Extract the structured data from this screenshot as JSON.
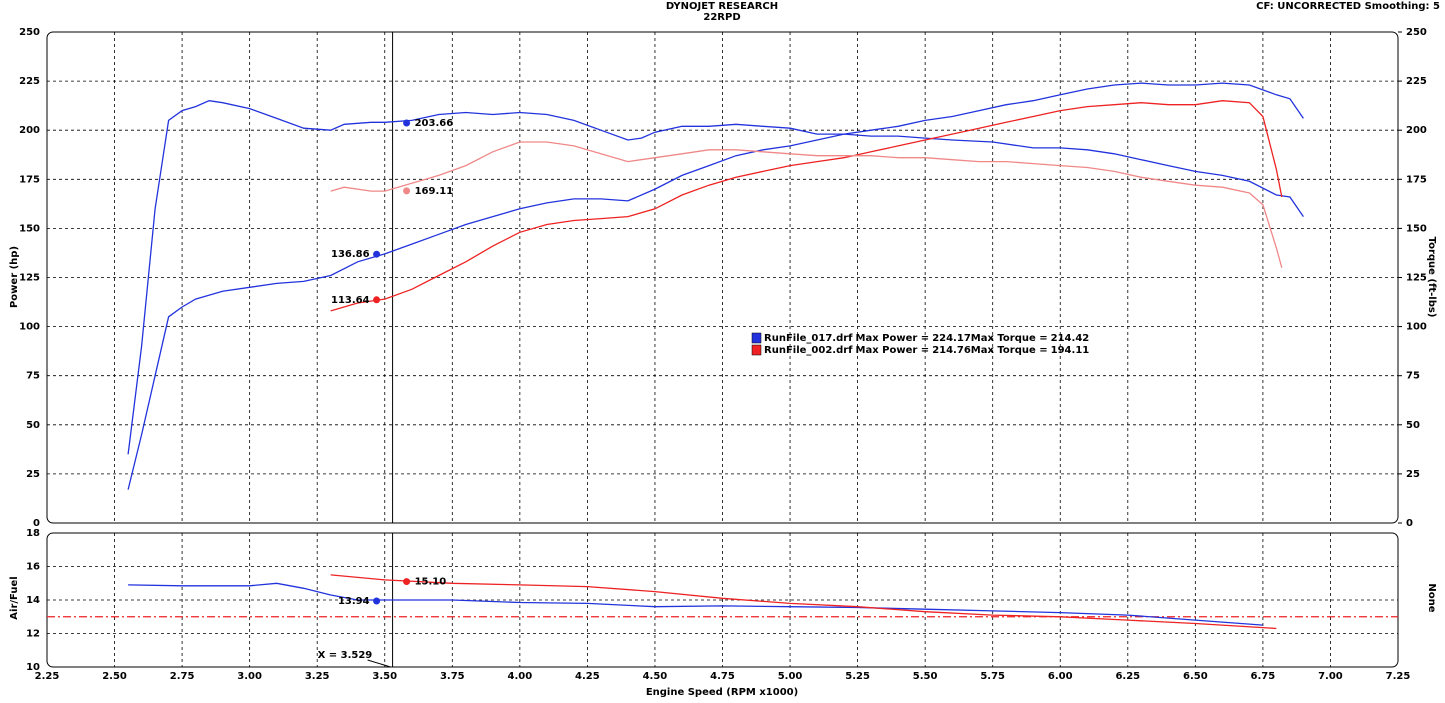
{
  "chart_data": [
    {
      "type": "line",
      "title": "DYNOJET RESEARCH",
      "subtitle": "22RPD",
      "note": "CF: UNCORRECTED  Smoothing: 5",
      "ylabel": "Power (hp)",
      "y2label": "Torque (ft-lbs)",
      "xlim": [
        2.25,
        7.25
      ],
      "ylim": [
        0,
        250
      ],
      "yticks": [
        0,
        25,
        50,
        75,
        100,
        125,
        150,
        175,
        200,
        225,
        250
      ],
      "y2lim": [
        0,
        250
      ],
      "y2ticks": [
        0,
        25,
        50,
        75,
        100,
        125,
        150,
        175,
        200,
        225,
        250
      ],
      "grid": true,
      "legend_text": {
        "power": "Max Power =",
        "torque": "Max Torque ="
      },
      "legend": [
        {
          "name": "RunFile_017.drf",
          "color": "#2233dd",
          "max_power": 224.17,
          "max_torque": 214.42
        },
        {
          "name": "RunFile_002.drf",
          "color": "#ee2222",
          "max_power": 214.76,
          "max_torque": 194.11
        }
      ],
      "series": [
        {
          "color": "#2233dd",
          "axis": "y",
          "cursor_value": 136.86,
          "x": [
            2.55,
            2.6,
            2.65,
            2.7,
            2.75,
            2.8,
            2.9,
            3.0,
            3.1,
            3.2,
            3.3,
            3.4,
            3.5,
            3.6,
            3.7,
            3.8,
            3.9,
            4.0,
            4.1,
            4.2,
            4.3,
            4.4,
            4.5,
            4.6,
            4.7,
            4.8,
            4.9,
            5.0,
            5.1,
            5.2,
            5.3,
            5.4,
            5.5,
            5.6,
            5.7,
            5.8,
            5.9,
            6.0,
            6.1,
            6.2,
            6.3,
            6.4,
            6.5,
            6.6,
            6.7,
            6.8,
            6.85,
            6.9
          ],
          "values": [
            17,
            45,
            75,
            105,
            110,
            114,
            118,
            120,
            122,
            123,
            126,
            133,
            137,
            142,
            147,
            152,
            156,
            160,
            163,
            165,
            165,
            164,
            170,
            177,
            182,
            187,
            190,
            192,
            195,
            198,
            200,
            202,
            205,
            207,
            210,
            213,
            215,
            218,
            221,
            223,
            224,
            223,
            223,
            224,
            223,
            218,
            216,
            206
          ]
        },
        {
          "color": "#2233dd",
          "axis": "y2",
          "cursor_value": 203.66,
          "x": [
            2.55,
            2.6,
            2.65,
            2.7,
            2.75,
            2.8,
            2.85,
            2.9,
            3.0,
            3.1,
            3.2,
            3.3,
            3.35,
            3.45,
            3.5,
            3.6,
            3.7,
            3.8,
            3.9,
            4.0,
            4.1,
            4.2,
            4.3,
            4.4,
            4.45,
            4.5,
            4.6,
            4.7,
            4.8,
            4.9,
            5.0,
            5.1,
            5.2,
            5.3,
            5.4,
            5.5,
            5.6,
            5.75,
            5.9,
            6.0,
            6.1,
            6.2,
            6.3,
            6.4,
            6.5,
            6.6,
            6.7,
            6.8,
            6.85,
            6.9
          ],
          "values": [
            35,
            90,
            160,
            205,
            210,
            212,
            215,
            214,
            211,
            206,
            201,
            200,
            203,
            204,
            204,
            205,
            208,
            209,
            208,
            209,
            208,
            205,
            200,
            195,
            196,
            199,
            202,
            202,
            203,
            202,
            201,
            198,
            198,
            197,
            197,
            196,
            195,
            194,
            191,
            191,
            190,
            188,
            185,
            182,
            179,
            177,
            174,
            167,
            166,
            156
          ]
        },
        {
          "color": "#ee2222",
          "axis": "y",
          "cursor_value": 113.64,
          "x": [
            3.3,
            3.4,
            3.5,
            3.6,
            3.7,
            3.8,
            3.9,
            4.0,
            4.1,
            4.2,
            4.3,
            4.4,
            4.5,
            4.6,
            4.7,
            4.8,
            4.9,
            5.0,
            5.1,
            5.2,
            5.3,
            5.4,
            5.5,
            5.6,
            5.7,
            5.8,
            5.9,
            6.0,
            6.1,
            6.2,
            6.3,
            6.4,
            6.5,
            6.6,
            6.7,
            6.75,
            6.8,
            6.82
          ],
          "values": [
            108,
            112,
            114,
            119,
            126,
            133,
            141,
            148,
            152,
            154,
            155,
            156,
            160,
            167,
            172,
            176,
            179,
            182,
            184,
            186,
            189,
            192,
            195,
            198,
            201,
            204,
            207,
            210,
            212,
            213,
            214,
            213,
            213,
            215,
            214,
            207,
            180,
            166
          ]
        },
        {
          "color": "#f08888",
          "axis": "y2",
          "cursor_value": 169.11,
          "x": [
            3.3,
            3.35,
            3.45,
            3.5,
            3.6,
            3.7,
            3.8,
            3.9,
            4.0,
            4.1,
            4.2,
            4.3,
            4.4,
            4.5,
            4.6,
            4.7,
            4.8,
            4.9,
            5.0,
            5.1,
            5.2,
            5.3,
            5.4,
            5.5,
            5.6,
            5.7,
            5.8,
            5.9,
            6.0,
            6.1,
            6.2,
            6.3,
            6.4,
            6.5,
            6.6,
            6.7,
            6.75,
            6.8,
            6.82
          ],
          "values": [
            169,
            171,
            169,
            169,
            173,
            177,
            182,
            189,
            194,
            194,
            192,
            188,
            184,
            186,
            188,
            190,
            190,
            189,
            188,
            187,
            187,
            187,
            186,
            186,
            185,
            184,
            184,
            183,
            182,
            181,
            179,
            176,
            174,
            172,
            171,
            168,
            162,
            140,
            130
          ]
        }
      ]
    },
    {
      "type": "line",
      "ylabel": "Air/Fuel",
      "y2label": "None",
      "xlabel": "Engine Speed (RPM x1000)",
      "xlim": [
        2.25,
        7.25
      ],
      "xticks": [
        2.25,
        {
          "value": 2.5,
          "label": "2.50"
        },
        2.75,
        {
          "value": 3,
          "label": "3.00"
        },
        3.25,
        {
          "value": 3.5,
          "label": "3.50"
        },
        3.75,
        {
          "value": 4,
          "label": "4.00"
        },
        4.25,
        {
          "value": 4.5,
          "label": "4.50"
        },
        4.75,
        {
          "value": 5,
          "label": "5.00"
        },
        5.25,
        {
          "value": 5.5,
          "label": "5.50"
        },
        5.75,
        {
          "value": 6,
          "label": "6.00"
        },
        6.25,
        {
          "value": 6.5,
          "label": "6.50"
        },
        6.75,
        {
          "value": 7,
          "label": "7.00"
        },
        7.25
      ],
      "ylim": [
        10,
        18
      ],
      "yticks": [
        10,
        12,
        14,
        16,
        18
      ],
      "grid": true,
      "reference_line": {
        "value": 13,
        "color": "#ee2222"
      },
      "cursor": {
        "value": 3.529,
        "label": "X = 3.529"
      },
      "series": [
        {
          "color": "#2233dd",
          "cursor_value": 13.94,
          "x": [
            2.55,
            2.75,
            3.0,
            3.1,
            3.2,
            3.3,
            3.4,
            3.5,
            3.75,
            4.0,
            4.25,
            4.5,
            4.75,
            5.0,
            5.25,
            5.5,
            5.75,
            6.0,
            6.25,
            6.5,
            6.75
          ],
          "values": [
            14.9,
            14.85,
            14.85,
            15.0,
            14.7,
            14.3,
            14.0,
            14.0,
            14.0,
            13.85,
            13.8,
            13.6,
            13.65,
            13.6,
            13.55,
            13.45,
            13.35,
            13.25,
            13.1,
            12.8,
            12.5
          ]
        },
        {
          "color": "#ee2222",
          "cursor_value": {
            "value": 15.1,
            "label": "15.10"
          },
          "x": [
            3.3,
            3.5,
            3.75,
            4.0,
            4.25,
            4.5,
            4.75,
            5.0,
            5.25,
            5.5,
            5.75,
            6.0,
            6.25,
            6.5,
            6.75,
            6.8
          ],
          "values": [
            15.5,
            15.2,
            15.0,
            14.9,
            14.8,
            14.5,
            14.1,
            13.8,
            13.6,
            13.3,
            13.1,
            13.0,
            12.8,
            12.6,
            12.35,
            12.3
          ]
        }
      ]
    }
  ]
}
